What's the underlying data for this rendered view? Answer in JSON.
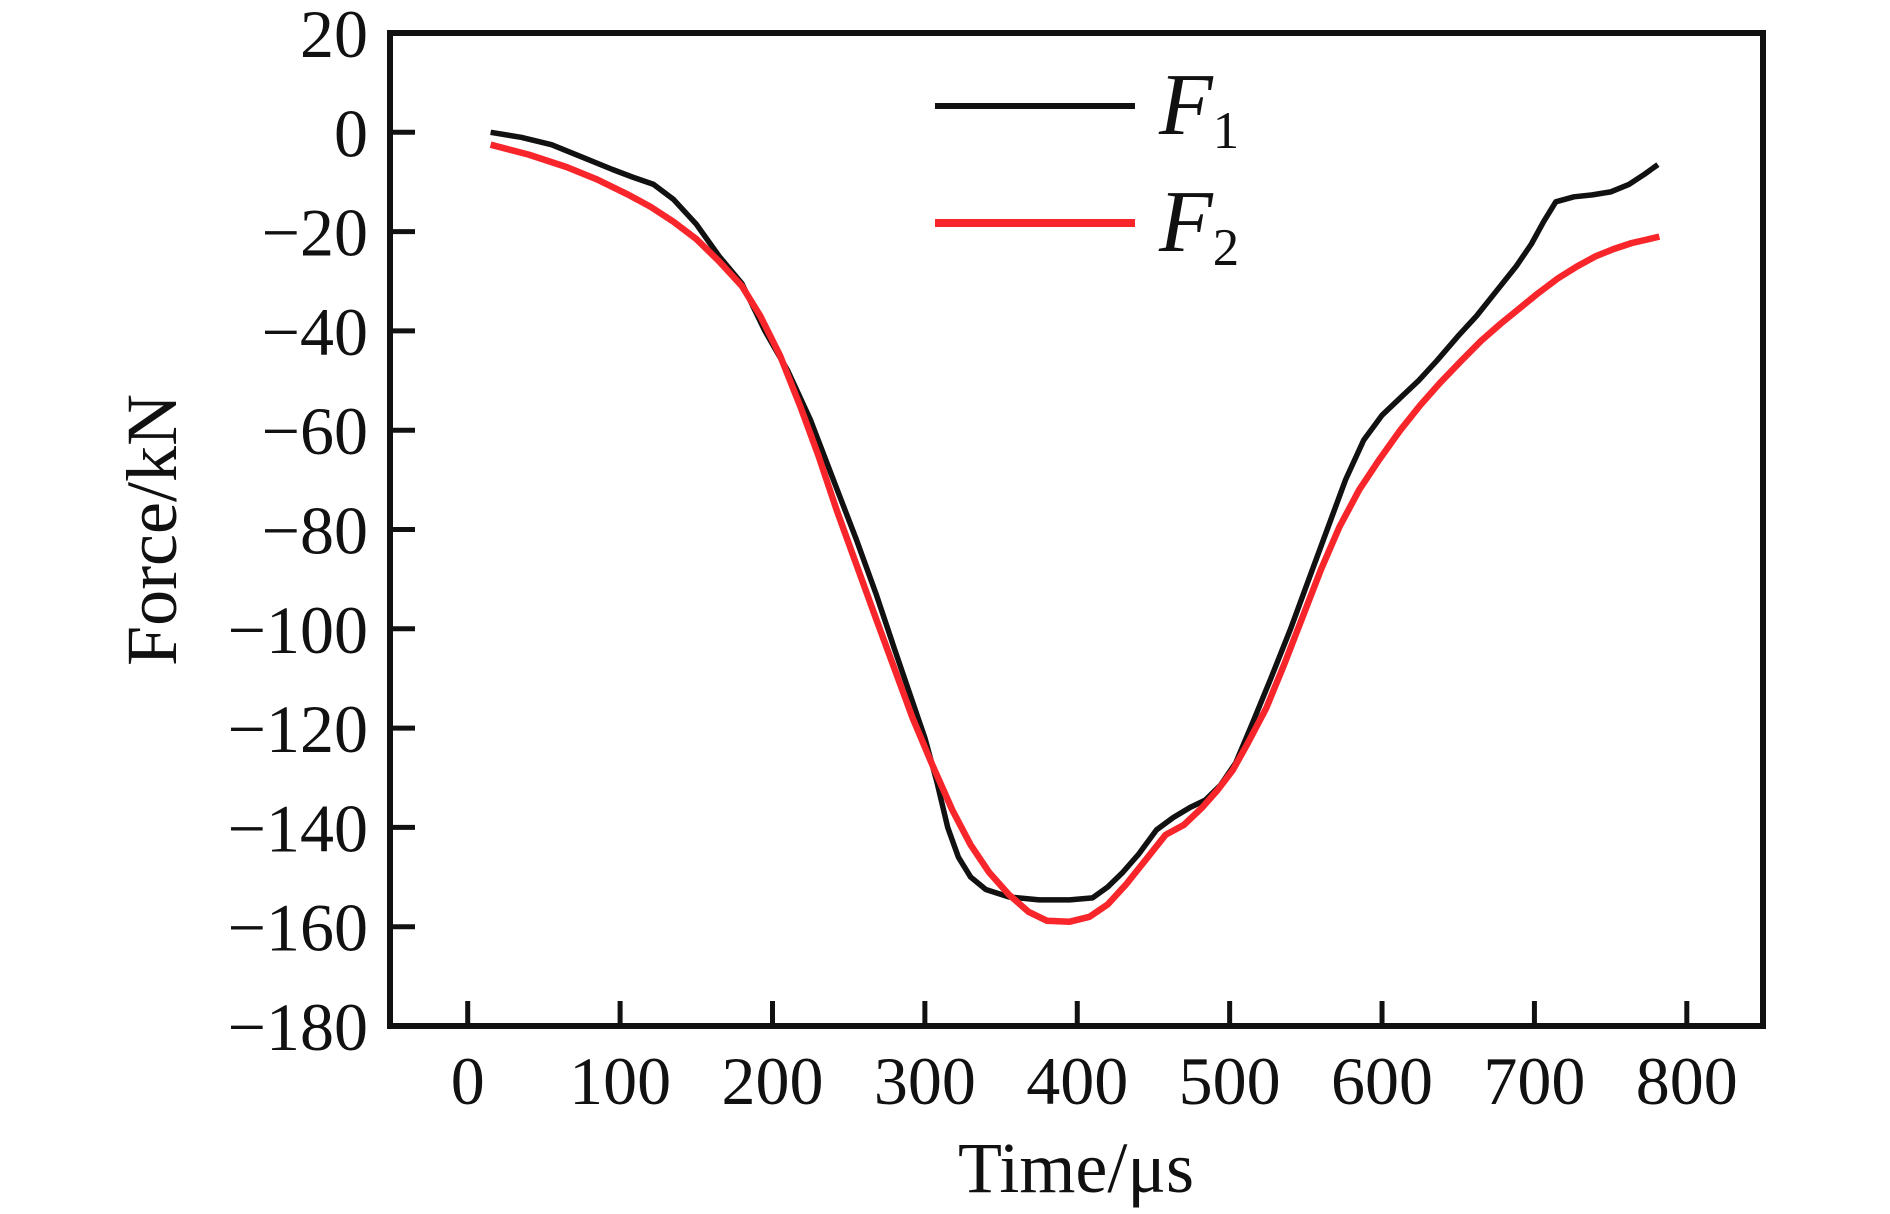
{
  "figure": {
    "background": "#ffffff",
    "legend": {
      "items": [
        {
          "label": "F",
          "sub": "1",
          "series": "F1"
        },
        {
          "label": "F",
          "sub": "2",
          "series": "F2"
        }
      ]
    }
  },
  "chart_data": {
    "type": "line",
    "title": "",
    "xlabel": "Time/μs",
    "ylabel": "Force/kN",
    "xlim": [
      -51,
      850
    ],
    "ylim": [
      -180,
      20
    ],
    "x_ticks": [
      0,
      100,
      200,
      300,
      400,
      500,
      600,
      700,
      800
    ],
    "y_ticks": [
      20,
      0,
      -20,
      -40,
      -60,
      -80,
      -100,
      -120,
      -140,
      -160,
      -180
    ],
    "grid": false,
    "legend_position": "upper center inside",
    "axis_color": "#111111",
    "series": [
      {
        "name": "F1",
        "color": "#111111",
        "stroke_width": 5.5,
        "points": [
          [
            15,
            0
          ],
          [
            35,
            -1
          ],
          [
            55,
            -2.5
          ],
          [
            75,
            -5
          ],
          [
            95,
            -7.5
          ],
          [
            108,
            -9
          ],
          [
            122,
            -10.5
          ],
          [
            135,
            -13.5
          ],
          [
            150,
            -18.5
          ],
          [
            165,
            -25
          ],
          [
            180,
            -30.5
          ],
          [
            195,
            -40
          ],
          [
            210,
            -48
          ],
          [
            225,
            -58
          ],
          [
            240,
            -70
          ],
          [
            255,
            -82
          ],
          [
            268,
            -93
          ],
          [
            280,
            -104
          ],
          [
            290,
            -113
          ],
          [
            300,
            -122
          ],
          [
            308,
            -131
          ],
          [
            315,
            -140
          ],
          [
            322,
            -146
          ],
          [
            330,
            -150
          ],
          [
            340,
            -152.5
          ],
          [
            355,
            -154
          ],
          [
            375,
            -154.6
          ],
          [
            395,
            -154.6
          ],
          [
            410,
            -154.2
          ],
          [
            420,
            -152
          ],
          [
            430,
            -149
          ],
          [
            440,
            -145.5
          ],
          [
            452,
            -140.5
          ],
          [
            463,
            -138
          ],
          [
            474,
            -136
          ],
          [
            484,
            -134.5
          ],
          [
            494,
            -131.5
          ],
          [
            504,
            -127
          ],
          [
            515,
            -119
          ],
          [
            527,
            -110
          ],
          [
            540,
            -100
          ],
          [
            552,
            -90
          ],
          [
            564,
            -80
          ],
          [
            576,
            -70
          ],
          [
            588,
            -62
          ],
          [
            600,
            -57
          ],
          [
            612,
            -53.5
          ],
          [
            624,
            -50
          ],
          [
            636,
            -46
          ],
          [
            650,
            -41
          ],
          [
            662,
            -37
          ],
          [
            675,
            -32
          ],
          [
            688,
            -27
          ],
          [
            698,
            -22.5
          ],
          [
            706,
            -18
          ],
          [
            714,
            -14
          ],
          [
            726,
            -13
          ],
          [
            738,
            -12.6
          ],
          [
            750,
            -12
          ],
          [
            762,
            -10.5
          ],
          [
            772,
            -8.5
          ],
          [
            781,
            -6.5
          ]
        ]
      },
      {
        "name": "F2",
        "color": "#f8262b",
        "stroke_width": 6.5,
        "points": [
          [
            15,
            -2.5
          ],
          [
            40,
            -4.5
          ],
          [
            65,
            -7
          ],
          [
            85,
            -9.5
          ],
          [
            105,
            -12.5
          ],
          [
            120,
            -15
          ],
          [
            135,
            -18
          ],
          [
            150,
            -21.5
          ],
          [
            165,
            -26
          ],
          [
            180,
            -31
          ],
          [
            192,
            -37
          ],
          [
            205,
            -45
          ],
          [
            218,
            -55
          ],
          [
            230,
            -65
          ],
          [
            242,
            -76
          ],
          [
            255,
            -87
          ],
          [
            268,
            -98
          ],
          [
            280,
            -108
          ],
          [
            292,
            -118
          ],
          [
            305,
            -127.5
          ],
          [
            318,
            -136.5
          ],
          [
            330,
            -143.5
          ],
          [
            342,
            -149
          ],
          [
            355,
            -153.5
          ],
          [
            368,
            -157
          ],
          [
            380,
            -158.8
          ],
          [
            395,
            -159
          ],
          [
            408,
            -158
          ],
          [
            420,
            -155.5
          ],
          [
            432,
            -151.5
          ],
          [
            445,
            -146.5
          ],
          [
            458,
            -141.5
          ],
          [
            470,
            -139.5
          ],
          [
            482,
            -136
          ],
          [
            492,
            -132.5
          ],
          [
            502,
            -128.5
          ],
          [
            512,
            -123
          ],
          [
            524,
            -116
          ],
          [
            536,
            -107
          ],
          [
            548,
            -97.5
          ],
          [
            560,
            -88
          ],
          [
            572,
            -79.5
          ],
          [
            585,
            -72
          ],
          [
            598,
            -66
          ],
          [
            612,
            -60
          ],
          [
            625,
            -55
          ],
          [
            638,
            -50.5
          ],
          [
            652,
            -46
          ],
          [
            665,
            -42
          ],
          [
            678,
            -38.5
          ],
          [
            690,
            -35.5
          ],
          [
            702,
            -32.5
          ],
          [
            715,
            -29.5
          ],
          [
            728,
            -27
          ],
          [
            740,
            -25
          ],
          [
            752,
            -23.5
          ],
          [
            764,
            -22.3
          ],
          [
            774,
            -21.6
          ],
          [
            782,
            -21
          ]
        ]
      }
    ]
  }
}
